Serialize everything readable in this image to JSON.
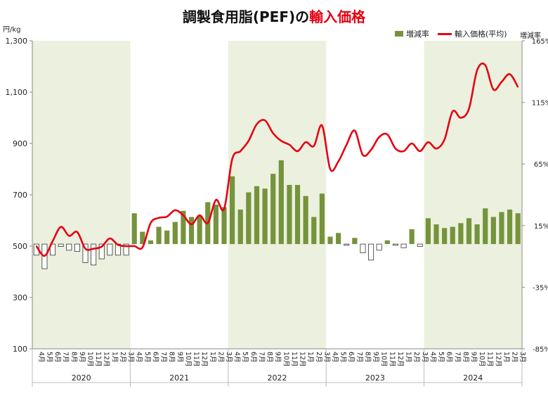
{
  "title": {
    "main": "調製食用脂(PEF)の",
    "accent": "輸入価格"
  },
  "units": {
    "left": "円/kg",
    "right": "増減率"
  },
  "legend": {
    "bar_label": "増減率",
    "line_label": "輸入価格(平均)"
  },
  "colors": {
    "line": "#e60012",
    "bar_positive": "#76933c",
    "bar_negative_fill": "#ffffff",
    "bar_negative_stroke": "#333333",
    "shade": "#ebf1de"
  },
  "chart_data": {
    "type": "bar+line",
    "title": "調製食用脂(PEF)の輸入価格",
    "y_left": {
      "label": "円/kg",
      "lim": [
        100,
        1300
      ],
      "ticks": [
        "100",
        "300",
        "500",
        "700",
        "900",
        "1,100",
        "1,300"
      ]
    },
    "y_right": {
      "label": "増減率",
      "lim": [
        -85,
        165
      ],
      "ticks": [
        "-85%",
        "-35%",
        "15%",
        "65%",
        "115%",
        "165%"
      ]
    },
    "month_labels": [
      "4月",
      "5月",
      "6月",
      "7月",
      "8月",
      "9月",
      "10月",
      "11月",
      "12月",
      "1月",
      "2月",
      "3月",
      "4月",
      "5月",
      "6月",
      "7月",
      "8月",
      "9月",
      "10月",
      "11月",
      "12月",
      "1月",
      "2月",
      "3月",
      "4月",
      "5月",
      "6月",
      "7月",
      "8月",
      "9月",
      "10月",
      "11月",
      "12月",
      "1月",
      "2月",
      "3月",
      "4月",
      "5月",
      "6月",
      "7月",
      "8月",
      "9月",
      "10月",
      "11月",
      "12月",
      "1月",
      "2月",
      "3月",
      "4月",
      "5月",
      "6月",
      "7月",
      "8月",
      "9月",
      "10月",
      "11月",
      "12月",
      "1月",
      "2月",
      "3月"
    ],
    "years": [
      "2020",
      "2021",
      "2022",
      "2023",
      "2024"
    ],
    "shaded_years": [
      0,
      2,
      4
    ],
    "series": [
      {
        "name": "増減率",
        "type": "bar",
        "axis": "right",
        "values": [
          -9,
          -20,
          -9,
          -2,
          -5,
          -6,
          -15,
          -17,
          -12,
          -9,
          -9,
          -9,
          25,
          10,
          3,
          14,
          11,
          18,
          27,
          22,
          23,
          34,
          32,
          30,
          55,
          28,
          42,
          47,
          45,
          57,
          68,
          48,
          48,
          39,
          22,
          41,
          6,
          9,
          -1,
          5,
          -7,
          -13,
          -5,
          3,
          -1,
          -3,
          12,
          -2,
          21,
          16,
          13,
          14,
          17,
          21,
          16,
          29,
          22,
          26,
          28,
          25
        ]
      },
      {
        "name": "輸入価格(平均)",
        "type": "line",
        "axis": "left",
        "values": [
          500,
          462,
          520,
          575,
          540,
          555,
          490,
          490,
          498,
          530,
          505,
          500,
          500,
          495,
          590,
          610,
          615,
          640,
          620,
          585,
          620,
          590,
          680,
          645,
          840,
          870,
          910,
          975,
          990,
          940,
          910,
          895,
          870,
          905,
          890,
          970,
          800,
          830,
          895,
          950,
          855,
          875,
          925,
          935,
          880,
          870,
          900,
          870,
          905,
          880,
          915,
          1025,
          1000,
          1035,
          1185,
          1205,
          1110,
          1140,
          1170,
          1120
        ]
      }
    ],
    "grid": false
  }
}
